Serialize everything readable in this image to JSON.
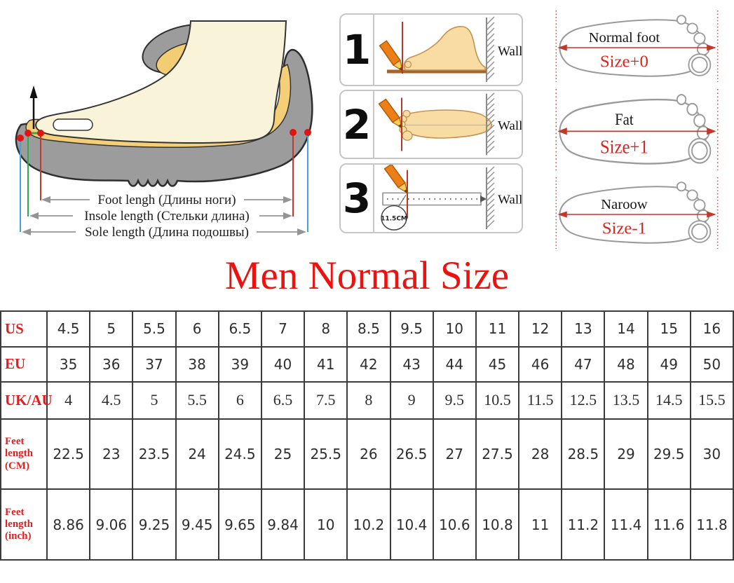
{
  "title": "Men Normal Size",
  "colors": {
    "title_red": "#ea1310",
    "table_header_red": "#e21f1f",
    "measure_red_line": "#c0392b",
    "measure_green_line": "#2fa84f",
    "measure_blue_line": "#44a3d9",
    "sole_grey": "#9c9c9c",
    "insole_yellow": "#f5cf78",
    "foot_cream": "#f8f3d9",
    "skin_tone": "#f9dca4",
    "pencil_orange": "#ee7f16"
  },
  "shoe_diagram": {
    "labels": [
      "Foot lengh (Длины ноги)",
      "Insole length (Стельки длина)",
      "Sole length (Длина подошвы)"
    ]
  },
  "measure_steps": {
    "wall_label": "Wall",
    "steps": [
      {
        "number": "1"
      },
      {
        "number": "2"
      },
      {
        "number": "3",
        "ruler_note": "11.5CM"
      }
    ]
  },
  "foot_types": [
    {
      "name": "Normal foot",
      "size": "Size+0"
    },
    {
      "name": "Fat",
      "size": "Size+1"
    },
    {
      "name": "Naroow",
      "size": "Size-1"
    }
  ],
  "size_table": {
    "rows": [
      {
        "label": "US",
        "values": [
          "4.5",
          "5",
          "5.5",
          "6",
          "6.5",
          "7",
          "8",
          "8.5",
          "9.5",
          "10",
          "11",
          "12",
          "13",
          "14",
          "15",
          "16"
        ]
      },
      {
        "label": "EU",
        "values": [
          "35",
          "36",
          "37",
          "38",
          "39",
          "40",
          "41",
          "42",
          "43",
          "44",
          "45",
          "46",
          "47",
          "48",
          "49",
          "50"
        ]
      },
      {
        "label": "UK/AU",
        "values": [
          "4",
          "4.5",
          "5",
          "5.5",
          "6",
          "6.5",
          "7.5",
          "8",
          "9",
          "9.5",
          "10.5",
          "11.5",
          "12.5",
          "13.5",
          "14.5",
          "15.5"
        ]
      },
      {
        "label": "Feet length (CM)",
        "values": [
          "22.5",
          "23",
          "23.5",
          "24",
          "24.5",
          "25",
          "25.5",
          "26",
          "26.5",
          "27",
          "27.5",
          "28",
          "28.5",
          "29",
          "29.5",
          "30"
        ]
      },
      {
        "label": "Feet length (inch)",
        "values": [
          "8.86",
          "9.06",
          "9.25",
          "9.45",
          "9.65",
          "9.84",
          "10",
          "10.2",
          "10.4",
          "10.6",
          "10.8",
          "11",
          "11.2",
          "11.4",
          "11.6",
          "11.8"
        ]
      }
    ]
  },
  "chart_data": {
    "type": "table",
    "title": "Men Normal Size",
    "row_headers": [
      "US",
      "EU",
      "UK/AU",
      "Feet length (CM)",
      "Feet length (inch)"
    ],
    "rows": [
      [
        4.5,
        5,
        5.5,
        6,
        6.5,
        7,
        8,
        8.5,
        9.5,
        10,
        11,
        12,
        13,
        14,
        15,
        16
      ],
      [
        35,
        36,
        37,
        38,
        39,
        40,
        41,
        42,
        43,
        44,
        45,
        46,
        47,
        48,
        49,
        50
      ],
      [
        4,
        4.5,
        5,
        5.5,
        6,
        6.5,
        7.5,
        8,
        9,
        9.5,
        10.5,
        11.5,
        12.5,
        13.5,
        14.5,
        15.5
      ],
      [
        22.5,
        23,
        23.5,
        24,
        24.5,
        25,
        25.5,
        26,
        26.5,
        27,
        27.5,
        28,
        28.5,
        29,
        29.5,
        30
      ],
      [
        8.86,
        9.06,
        9.25,
        9.45,
        9.65,
        9.84,
        10,
        10.2,
        10.4,
        10.6,
        10.8,
        11,
        11.2,
        11.4,
        11.6,
        11.8
      ]
    ]
  }
}
